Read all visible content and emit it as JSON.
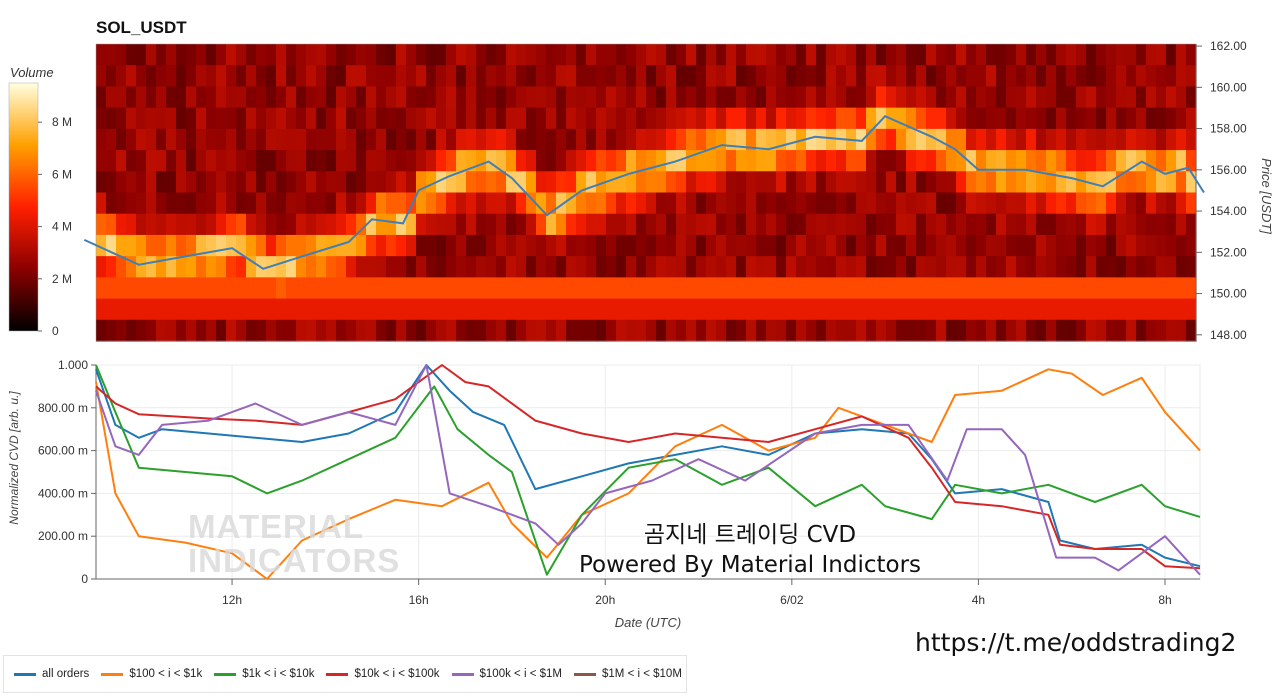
{
  "chart_data": [
    {
      "type": "heatmap",
      "title": "SOL_USDT",
      "colorbar_label": "Volume",
      "colorbar_ticks": [
        "0",
        "2 M",
        "4 M",
        "6 M",
        "8 M"
      ],
      "colorbar_tick_values": [
        0,
        2000000,
        4000000,
        6000000,
        8000000
      ],
      "colorbar_range": [
        0,
        9500000
      ],
      "y_axis_label": "Price [USDT]",
      "y_ticks": [
        "148.00",
        "150.00",
        "152.00",
        "154.00",
        "156.00",
        "158.00",
        "160.00",
        "162.00"
      ],
      "y_tick_values": [
        148,
        150,
        152,
        154,
        156,
        158,
        160,
        162
      ],
      "ylim": [
        147.7,
        162.1
      ],
      "price_series_name": "Price",
      "price_series": [
        {
          "x": "2024-06-01T08:50",
          "y": 152.6
        },
        {
          "x": "2024-06-01T10:00",
          "y": 151.4
        },
        {
          "x": "2024-06-01T11:00",
          "y": 151.8
        },
        {
          "x": "2024-06-01T12:00",
          "y": 152.2
        },
        {
          "x": "2024-06-01T12:40",
          "y": 151.2
        },
        {
          "x": "2024-06-01T13:30",
          "y": 151.8
        },
        {
          "x": "2024-06-01T14:30",
          "y": 152.5
        },
        {
          "x": "2024-06-01T15:00",
          "y": 153.6
        },
        {
          "x": "2024-06-01T15:40",
          "y": 153.4
        },
        {
          "x": "2024-06-01T16:00",
          "y": 155.0
        },
        {
          "x": "2024-06-01T16:40",
          "y": 155.7
        },
        {
          "x": "2024-06-01T17:30",
          "y": 156.4
        },
        {
          "x": "2024-06-01T18:00",
          "y": 155.6
        },
        {
          "x": "2024-06-01T18:45",
          "y": 153.8
        },
        {
          "x": "2024-06-01T19:30",
          "y": 155.0
        },
        {
          "x": "2024-06-01T20:30",
          "y": 155.8
        },
        {
          "x": "2024-06-01T21:30",
          "y": 156.4
        },
        {
          "x": "2024-06-01T22:30",
          "y": 157.2
        },
        {
          "x": "2024-06-01T23:30",
          "y": 157.0
        },
        {
          "x": "2024-06-02T00:30",
          "y": 157.6
        },
        {
          "x": "2024-06-02T01:30",
          "y": 157.4
        },
        {
          "x": "2024-06-02T02:00",
          "y": 158.6
        },
        {
          "x": "2024-06-02T03:00",
          "y": 157.6
        },
        {
          "x": "2024-06-02T03:30",
          "y": 157.0
        },
        {
          "x": "2024-06-02T04:00",
          "y": 156.0
        },
        {
          "x": "2024-06-02T05:00",
          "y": 156.0
        },
        {
          "x": "2024-06-02T06:00",
          "y": 155.6
        },
        {
          "x": "2024-06-02T06:40",
          "y": 155.2
        },
        {
          "x": "2024-06-02T07:30",
          "y": 156.4
        },
        {
          "x": "2024-06-02T08:00",
          "y": 155.8
        },
        {
          "x": "2024-06-02T08:30",
          "y": 156.1
        },
        {
          "x": "2024-06-02T08:50",
          "y": 154.9
        }
      ]
    },
    {
      "type": "line",
      "x_axis_label": "Date (UTC)",
      "y_axis_label": "Normalized CVD [arb. u.]",
      "x_ticks": [
        "12h",
        "16h",
        "20h",
        "6/02",
        "4h",
        "8h"
      ],
      "x_tick_values": [
        "2024-06-01T12:00",
        "2024-06-01T16:00",
        "2024-06-01T20:00",
        "2024-06-02T00:00",
        "2024-06-02T04:00",
        "2024-06-02T08:00"
      ],
      "xlim": [
        "2024-06-01T09:05",
        "2024-06-02T08:45"
      ],
      "y_ticks": [
        "0",
        "200.00 m",
        "400.00 m",
        "600.00 m",
        "800.00 m",
        "1.000"
      ],
      "y_tick_values": [
        0,
        0.2,
        0.4,
        0.6,
        0.8,
        1.0
      ],
      "ylim": [
        0,
        1.0
      ],
      "series": [
        {
          "name": "all orders",
          "color": "#1f77b4",
          "points": [
            [
              "2024-06-01T09:05",
              0.98
            ],
            [
              "2024-06-01T09:30",
              0.72
            ],
            [
              "2024-06-01T10:00",
              0.66
            ],
            [
              "2024-06-01T10:30",
              0.7
            ],
            [
              "2024-06-01T11:30",
              0.68
            ],
            [
              "2024-06-01T12:30",
              0.66
            ],
            [
              "2024-06-01T13:30",
              0.64
            ],
            [
              "2024-06-01T14:30",
              0.68
            ],
            [
              "2024-06-01T15:30",
              0.78
            ],
            [
              "2024-06-01T16:10",
              1.0
            ],
            [
              "2024-06-01T16:40",
              0.88
            ],
            [
              "2024-06-01T17:10",
              0.78
            ],
            [
              "2024-06-01T17:50",
              0.72
            ],
            [
              "2024-06-01T18:30",
              0.42
            ],
            [
              "2024-06-01T19:30",
              0.48
            ],
            [
              "2024-06-01T20:30",
              0.54
            ],
            [
              "2024-06-01T21:30",
              0.58
            ],
            [
              "2024-06-01T22:30",
              0.62
            ],
            [
              "2024-06-01T23:30",
              0.58
            ],
            [
              "2024-06-02T00:30",
              0.68
            ],
            [
              "2024-06-02T01:30",
              0.7
            ],
            [
              "2024-06-02T02:30",
              0.68
            ],
            [
              "2024-06-02T03:00",
              0.56
            ],
            [
              "2024-06-02T03:30",
              0.4
            ],
            [
              "2024-06-02T04:30",
              0.42
            ],
            [
              "2024-06-02T05:30",
              0.36
            ],
            [
              "2024-06-02T05:45",
              0.18
            ],
            [
              "2024-06-02T06:30",
              0.14
            ],
            [
              "2024-06-02T07:30",
              0.16
            ],
            [
              "2024-06-02T08:00",
              0.1
            ],
            [
              "2024-06-02T08:45",
              0.06
            ]
          ]
        },
        {
          "name": "$100 < i < $1k",
          "color": "#ff7f0e",
          "points": [
            [
              "2024-06-01T09:05",
              0.92
            ],
            [
              "2024-06-01T09:30",
              0.4
            ],
            [
              "2024-06-01T10:00",
              0.2
            ],
            [
              "2024-06-01T11:00",
              0.17
            ],
            [
              "2024-06-01T12:00",
              0.12
            ],
            [
              "2024-06-01T12:45",
              0.0
            ],
            [
              "2024-06-01T13:30",
              0.18
            ],
            [
              "2024-06-01T14:30",
              0.28
            ],
            [
              "2024-06-01T15:30",
              0.37
            ],
            [
              "2024-06-01T16:30",
              0.34
            ],
            [
              "2024-06-01T17:30",
              0.45
            ],
            [
              "2024-06-01T18:00",
              0.26
            ],
            [
              "2024-06-01T18:45",
              0.1
            ],
            [
              "2024-06-01T19:30",
              0.3
            ],
            [
              "2024-06-01T20:30",
              0.4
            ],
            [
              "2024-06-01T21:30",
              0.62
            ],
            [
              "2024-06-01T22:30",
              0.72
            ],
            [
              "2024-06-01T23:30",
              0.6
            ],
            [
              "2024-06-02T00:30",
              0.66
            ],
            [
              "2024-06-02T01:00",
              0.8
            ],
            [
              "2024-06-02T02:00",
              0.72
            ],
            [
              "2024-06-02T03:00",
              0.64
            ],
            [
              "2024-06-02T03:30",
              0.86
            ],
            [
              "2024-06-02T04:30",
              0.88
            ],
            [
              "2024-06-02T05:30",
              0.98
            ],
            [
              "2024-06-02T06:00",
              0.96
            ],
            [
              "2024-06-02T06:40",
              0.86
            ],
            [
              "2024-06-02T07:30",
              0.94
            ],
            [
              "2024-06-02T08:00",
              0.78
            ],
            [
              "2024-06-02T08:45",
              0.6
            ]
          ]
        },
        {
          "name": "$1k < i < $10k",
          "color": "#2ca02c",
          "points": [
            [
              "2024-06-01T09:05",
              1.0
            ],
            [
              "2024-06-01T09:30",
              0.78
            ],
            [
              "2024-06-01T10:00",
              0.52
            ],
            [
              "2024-06-01T11:00",
              0.5
            ],
            [
              "2024-06-01T12:00",
              0.48
            ],
            [
              "2024-06-01T12:45",
              0.4
            ],
            [
              "2024-06-01T13:30",
              0.46
            ],
            [
              "2024-06-01T14:30",
              0.56
            ],
            [
              "2024-06-01T15:30",
              0.66
            ],
            [
              "2024-06-01T16:20",
              0.9
            ],
            [
              "2024-06-01T16:50",
              0.7
            ],
            [
              "2024-06-01T17:30",
              0.58
            ],
            [
              "2024-06-01T18:00",
              0.5
            ],
            [
              "2024-06-01T18:45",
              0.02
            ],
            [
              "2024-06-01T19:30",
              0.3
            ],
            [
              "2024-06-01T20:30",
              0.52
            ],
            [
              "2024-06-01T21:30",
              0.56
            ],
            [
              "2024-06-01T22:30",
              0.44
            ],
            [
              "2024-06-01T23:30",
              0.52
            ],
            [
              "2024-06-02T00:30",
              0.34
            ],
            [
              "2024-06-02T01:30",
              0.44
            ],
            [
              "2024-06-02T02:00",
              0.34
            ],
            [
              "2024-06-02T03:00",
              0.28
            ],
            [
              "2024-06-02T03:30",
              0.44
            ],
            [
              "2024-06-02T04:30",
              0.4
            ],
            [
              "2024-06-02T05:30",
              0.44
            ],
            [
              "2024-06-02T06:30",
              0.36
            ],
            [
              "2024-06-02T07:30",
              0.44
            ],
            [
              "2024-06-02T08:00",
              0.34
            ],
            [
              "2024-06-02T08:45",
              0.29
            ]
          ]
        },
        {
          "name": "$10k < i < $100k",
          "color": "#d62728",
          "points": [
            [
              "2024-06-01T09:05",
              0.9
            ],
            [
              "2024-06-01T09:30",
              0.82
            ],
            [
              "2024-06-01T10:00",
              0.77
            ],
            [
              "2024-06-01T11:30",
              0.75
            ],
            [
              "2024-06-01T12:30",
              0.74
            ],
            [
              "2024-06-01T13:30",
              0.72
            ],
            [
              "2024-06-01T14:30",
              0.78
            ],
            [
              "2024-06-01T15:30",
              0.84
            ],
            [
              "2024-06-01T16:30",
              1.0
            ],
            [
              "2024-06-01T17:00",
              0.92
            ],
            [
              "2024-06-01T17:30",
              0.9
            ],
            [
              "2024-06-01T18:30",
              0.74
            ],
            [
              "2024-06-01T19:30",
              0.68
            ],
            [
              "2024-06-01T20:30",
              0.64
            ],
            [
              "2024-06-01T21:30",
              0.68
            ],
            [
              "2024-06-01T22:30",
              0.66
            ],
            [
              "2024-06-01T23:30",
              0.64
            ],
            [
              "2024-06-02T00:30",
              0.7
            ],
            [
              "2024-06-02T01:30",
              0.76
            ],
            [
              "2024-06-02T02:30",
              0.66
            ],
            [
              "2024-06-02T03:00",
              0.52
            ],
            [
              "2024-06-02T03:30",
              0.36
            ],
            [
              "2024-06-02T04:30",
              0.34
            ],
            [
              "2024-06-02T05:30",
              0.3
            ],
            [
              "2024-06-02T05:45",
              0.16
            ],
            [
              "2024-06-02T06:30",
              0.14
            ],
            [
              "2024-06-02T07:30",
              0.14
            ],
            [
              "2024-06-02T08:00",
              0.06
            ],
            [
              "2024-06-02T08:45",
              0.05
            ]
          ]
        },
        {
          "name": "$100k < i < $1M",
          "color": "#9467bd",
          "points": [
            [
              "2024-06-01T09:05",
              0.88
            ],
            [
              "2024-06-01T09:30",
              0.62
            ],
            [
              "2024-06-01T10:00",
              0.58
            ],
            [
              "2024-06-01T10:30",
              0.72
            ],
            [
              "2024-06-01T11:30",
              0.74
            ],
            [
              "2024-06-01T12:30",
              0.82
            ],
            [
              "2024-06-01T13:30",
              0.72
            ],
            [
              "2024-06-01T14:30",
              0.78
            ],
            [
              "2024-06-01T15:30",
              0.72
            ],
            [
              "2024-06-01T16:10",
              1.0
            ],
            [
              "2024-06-01T16:40",
              0.4
            ],
            [
              "2024-06-01T17:30",
              0.34
            ],
            [
              "2024-06-01T18:30",
              0.26
            ],
            [
              "2024-06-01T19:00",
              0.16
            ],
            [
              "2024-06-01T19:30",
              0.26
            ],
            [
              "2024-06-01T20:00",
              0.4
            ],
            [
              "2024-06-01T21:00",
              0.46
            ],
            [
              "2024-06-01T22:00",
              0.56
            ],
            [
              "2024-06-01T23:00",
              0.46
            ],
            [
              "2024-06-02T00:30",
              0.68
            ],
            [
              "2024-06-02T01:30",
              0.72
            ],
            [
              "2024-06-02T02:30",
              0.72
            ],
            [
              "2024-06-02T03:20",
              0.46
            ],
            [
              "2024-06-02T03:45",
              0.7
            ],
            [
              "2024-06-02T04:30",
              0.7
            ],
            [
              "2024-06-02T05:00",
              0.58
            ],
            [
              "2024-06-02T05:40",
              0.1
            ],
            [
              "2024-06-02T06:30",
              0.1
            ],
            [
              "2024-06-02T07:00",
              0.04
            ],
            [
              "2024-06-02T08:00",
              0.2
            ],
            [
              "2024-06-02T08:45",
              0.02
            ]
          ]
        },
        {
          "name": "$1M < i < $10M",
          "color": "#8c564b",
          "points": []
        }
      ]
    }
  ],
  "annotations": {
    "overlay_title": "곰지네 트레이딩 CVD",
    "overlay_subtitle": "Powered By Material Indictors",
    "url": "https://t.me/oddstrading2",
    "watermark_line1": "MATERIAL",
    "watermark_line2": "INDICATORS"
  },
  "legend": [
    {
      "label": "all orders",
      "color": "#1f77b4"
    },
    {
      "label": "$100 < i < $1k",
      "color": "#ff7f0e"
    },
    {
      "label": "$1k < i < $10k",
      "color": "#2ca02c"
    },
    {
      "label": "$10k < i < $100k",
      "color": "#d62728"
    },
    {
      "label": "$100k < i < $1M",
      "color": "#9467bd"
    },
    {
      "label": "$1M < i < $10M",
      "color": "#8c564b"
    }
  ]
}
